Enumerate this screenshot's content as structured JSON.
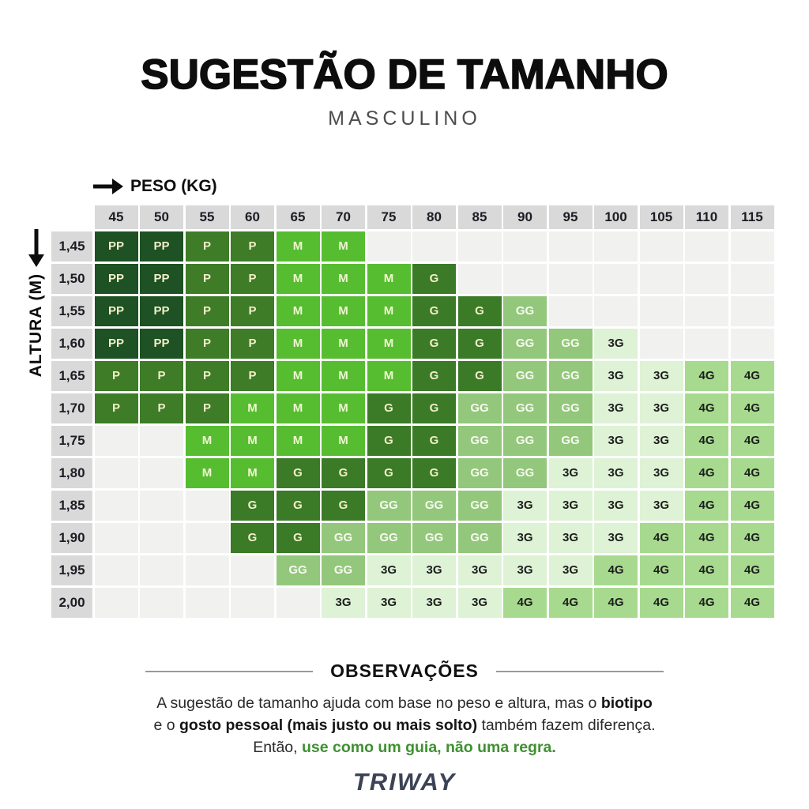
{
  "page": {
    "title": "SUGESTÃO DE TAMANHO",
    "subtitle": "MASCULINO",
    "brand": "TRIWAY"
  },
  "chart_data": {
    "type": "heatmap",
    "title": "SUGESTÃO DE TAMANHO",
    "subtitle": "MASCULINO",
    "x_axis_label": "PESO (KG)",
    "y_axis_label": "ALTURA (M)",
    "weights": [
      "45",
      "50",
      "55",
      "60",
      "65",
      "70",
      "75",
      "80",
      "85",
      "90",
      "95",
      "100",
      "105",
      "110",
      "115"
    ],
    "heights": [
      "1,45",
      "1,50",
      "1,55",
      "1,60",
      "1,65",
      "1,70",
      "1,75",
      "1,80",
      "1,85",
      "1,90",
      "1,95",
      "2,00"
    ],
    "grid": [
      [
        "PP",
        "PP",
        "P",
        "P",
        "M",
        "M",
        "",
        "",
        "",
        "",
        "",
        "",
        "",
        "",
        ""
      ],
      [
        "PP",
        "PP",
        "P",
        "P",
        "M",
        "M",
        "M",
        "G",
        "",
        "",
        "",
        "",
        "",
        "",
        ""
      ],
      [
        "PP",
        "PP",
        "P",
        "P",
        "M",
        "M",
        "M",
        "G",
        "G",
        "GG",
        "",
        "",
        "",
        "",
        ""
      ],
      [
        "PP",
        "PP",
        "P",
        "P",
        "M",
        "M",
        "M",
        "G",
        "G",
        "GG",
        "GG",
        "3G",
        "",
        "",
        ""
      ],
      [
        "P",
        "P",
        "P",
        "P",
        "M",
        "M",
        "M",
        "G",
        "G",
        "GG",
        "GG",
        "3G",
        "3G",
        "4G",
        "4G"
      ],
      [
        "P",
        "P",
        "P",
        "M",
        "M",
        "M",
        "G",
        "G",
        "GG",
        "GG",
        "GG",
        "3G",
        "3G",
        "4G",
        "4G"
      ],
      [
        "",
        "",
        "M",
        "M",
        "M",
        "M",
        "G",
        "G",
        "GG",
        "GG",
        "GG",
        "3G",
        "3G",
        "4G",
        "4G"
      ],
      [
        "",
        "",
        "M",
        "M",
        "G",
        "G",
        "G",
        "G",
        "GG",
        "GG",
        "3G",
        "3G",
        "3G",
        "4G",
        "4G"
      ],
      [
        "",
        "",
        "",
        "G",
        "G",
        "G",
        "GG",
        "GG",
        "GG",
        "3G",
        "3G",
        "3G",
        "3G",
        "4G",
        "4G"
      ],
      [
        "",
        "",
        "",
        "G",
        "G",
        "GG",
        "GG",
        "GG",
        "GG",
        "3G",
        "3G",
        "3G",
        "4G",
        "4G",
        "4G"
      ],
      [
        "",
        "",
        "",
        "",
        "GG",
        "GG",
        "3G",
        "3G",
        "3G",
        "3G",
        "3G",
        "4G",
        "4G",
        "4G",
        "4G"
      ],
      [
        "",
        "",
        "",
        "",
        "",
        "3G",
        "3G",
        "3G",
        "3G",
        "4G",
        "4G",
        "4G",
        "4G",
        "4G",
        "4G"
      ]
    ],
    "size_colors": {
      "PP": {
        "bg": "#1e5123",
        "text": "#f2efc8"
      },
      "P": {
        "bg": "#3e7c28",
        "text": "#f2efc8"
      },
      "M": {
        "bg": "#56bd31",
        "text": "#f2f5d2"
      },
      "G": {
        "bg": "#3b7a26",
        "text": "#f2efc8"
      },
      "GG": {
        "bg": "#93c77c",
        "text": "#f7faf0"
      },
      "3G": {
        "bg": "#def2d5",
        "text": "#1d1d1d"
      },
      "4G": {
        "bg": "#a7da8f",
        "text": "#1d1d1d"
      }
    },
    "empty_bg": "#f1f1f0",
    "header_bg": "#d9d9d9"
  },
  "observations": {
    "heading": "OBSERVAÇÕES",
    "line1_normal": "A sugestão de tamanho ajuda com base no peso e altura, mas o ",
    "line1_bold": "biotipo",
    "line2_pre": "e o ",
    "line2_bold": "gosto pessoal (mais justo ou mais solto)",
    "line2_post": " também fazem diferença.",
    "line3_pre": "Então, ",
    "line3_green": "use como um guia, não uma regra.",
    "green_color": "#3f9132"
  }
}
